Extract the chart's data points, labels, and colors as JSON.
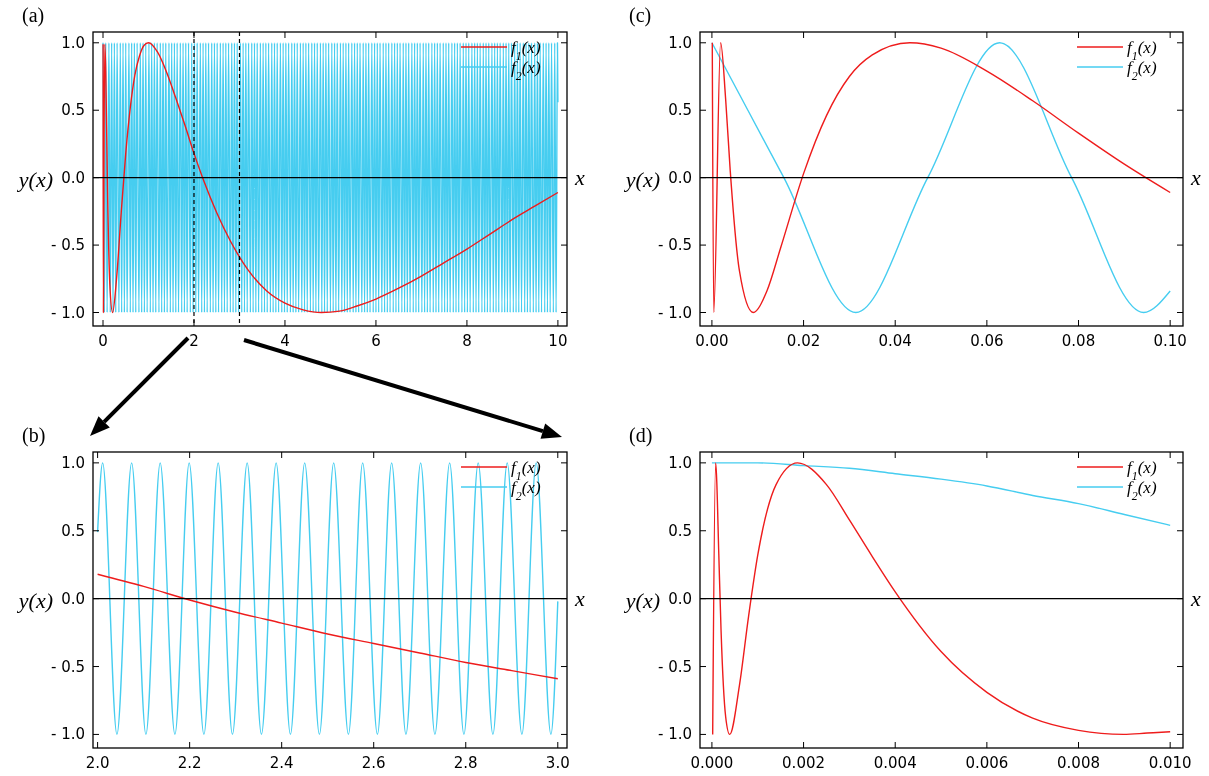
{
  "chart_data": [
    {
      "type": "line",
      "title": "(a)",
      "xlabel": "x",
      "ylabel": "y(x)",
      "legend": "top right",
      "xlim": [
        -0.22,
        10.2
      ],
      "ylim": [
        -1.1,
        1.08
      ],
      "xticks": [
        0,
        2,
        4,
        6,
        8,
        10
      ],
      "yticks": [
        {
          "value": -1,
          "label": "- 1.0"
        },
        {
          "value": -0.5,
          "label": "- 0.5"
        },
        {
          "value": 0,
          "label": "0.0"
        },
        {
          "value": 0.5,
          "label": "0.5"
        },
        {
          "value": 1,
          "label": "1.0"
        }
      ],
      "ref_lines": [
        {
          "axis": "y",
          "value": 0,
          "color": "#000000",
          "line_style": "solid"
        },
        {
          "axis": "x",
          "value": 2,
          "color": "#000000",
          "line_style": "dashed"
        },
        {
          "axis": "x",
          "value": 3,
          "color": "#000000",
          "line_style": "dashed"
        }
      ],
      "series": [
        {
          "name": "f$_{1}$(x)",
          "color": "#ee1c1c",
          "x": [
            0.002,
            0.004,
            0.009,
            0.02,
            0.04,
            0.06,
            0.1,
            0.15,
            0.21,
            0.3,
            0.4,
            0.5,
            0.6,
            0.7,
            0.8,
            0.9,
            1,
            1.2,
            1.4,
            1.6,
            1.8,
            2,
            2.2,
            2.5,
            2.8,
            3.2,
            3.6,
            4,
            4.4,
            4.8,
            5.2,
            5.6,
            6,
            6.5,
            7,
            7.5,
            8,
            8.5,
            9,
            9.5,
            10
          ],
          "values": [
            0.99,
            0.05,
            -1,
            0.03,
            0.99,
            0.79,
            -0.11,
            -0.79,
            -1,
            -0.74,
            -0.26,
            0.18,
            0.52,
            0.76,
            0.9,
            0.98,
            1,
            0.93,
            0.78,
            0.59,
            0.39,
            0.18,
            -0.01,
            -0.26,
            -0.47,
            -0.69,
            -0.84,
            -0.93,
            -0.98,
            -1,
            -0.99,
            -0.95,
            -0.9,
            -0.82,
            -0.73,
            -0.63,
            -0.53,
            -0.42,
            -0.31,
            -0.21,
            -0.11
          ]
        },
        {
          "name": "f$_{2}$(x)",
          "color": "#46cdf0",
          "x": [
            0,
            0.03,
            0.06,
            0.09,
            0.13,
            0.16,
            0.19,
            0.22,
            0.25,
            0.28,
            0.31,
            0.35,
            0.38,
            0.41,
            0.44,
            0.47,
            0.5,
            0.53,
            0.57,
            0.6,
            0.63,
            0.66,
            0.69,
            0.72,
            0.75,
            0.79,
            0.82,
            0.85,
            0.88,
            0.91,
            0.94,
            0.97,
            1.01,
            1.04,
            1.07,
            1.1,
            1.13,
            1.16,
            1.19,
            1.23,
            1.26,
            1.29,
            1.32,
            1.35,
            1.38,
            1.41,
            1.45,
            1.48,
            1.51,
            1.54,
            1.57,
            1.6,
            1.63,
            1.66,
            1.7,
            1.73,
            1.76,
            1.79,
            1.82,
            1.85,
            1.88,
            1.92,
            1.95,
            1.98,
            2.01,
            2.04,
            2.07,
            2.1,
            2.14,
            2.17,
            2.2,
            2.23,
            2.26,
            2.29,
            2.32,
            2.36,
            2.39,
            2.42,
            2.45,
            2.48,
            2.51,
            2.54,
            2.58,
            2.61,
            2.64,
            2.67,
            2.7,
            2.73,
            2.76,
            2.8,
            2.83,
            2.86,
            2.89,
            2.92,
            2.95,
            2.98,
            3.02,
            3.05,
            3.08,
            3.11,
            3.14,
            3.17,
            3.2,
            3.24,
            3.27,
            3.3,
            3.33,
            3.36,
            3.39,
            3.42,
            3.46,
            3.49,
            3.52,
            3.55,
            3.58,
            3.61,
            3.64,
            3.68,
            3.71,
            3.74,
            3.77,
            3.8,
            3.83,
            3.86,
            3.9,
            3.93,
            3.96,
            3.99,
            4.02,
            4.05,
            4.08,
            4.12,
            4.15,
            4.18,
            4.21,
            4.24,
            4.27,
            4.3,
            4.34,
            4.37,
            4.4,
            4.43,
            4.46,
            4.49,
            4.52,
            4.56,
            4.59,
            4.62,
            4.65,
            4.68,
            4.71,
            4.74,
            4.78,
            4.81,
            4.84,
            4.87,
            4.9,
            4.93,
            4.96,
            5,
            5.03,
            5.06,
            5.09,
            5.12,
            5.15,
            5.18,
            5.22,
            5.25,
            5.28,
            5.31,
            5.34,
            5.37,
            5.4,
            5.43,
            5.47,
            5.5,
            5.53,
            5.56,
            5.59,
            5.62,
            5.65,
            5.69,
            5.72,
            5.75,
            5.78,
            5.81,
            5.84,
            5.87,
            5.91,
            5.94,
            5.97,
            6,
            6.03,
            6.06,
            6.09,
            6.13,
            6.16,
            6.19,
            6.22,
            6.25,
            6.28,
            6.31,
            6.35,
            6.38,
            6.41,
            6.44,
            6.47,
            6.5,
            6.53,
            6.57,
            6.6,
            6.63,
            6.66,
            6.69,
            6.72,
            6.75,
            6.79,
            6.82,
            6.85,
            6.88,
            6.91,
            6.94,
            6.97,
            7.01,
            7.04,
            7.07,
            7.1,
            7.13,
            7.16,
            7.19,
            7.23,
            7.26,
            7.29,
            7.32,
            7.35,
            7.38,
            7.41,
            7.45,
            7.48,
            7.51,
            7.54,
            7.57,
            7.6,
            7.63,
            7.67,
            7.7,
            7.73,
            7.76,
            7.79,
            7.82,
            7.85,
            7.89,
            7.92,
            7.95,
            7.98,
            8.01,
            8.04,
            8.07,
            8.11,
            8.14,
            8.17,
            8.2,
            8.23,
            8.26,
            8.29,
            8.33,
            8.36,
            8.39,
            8.42,
            8.45,
            8.48,
            8.51,
            8.55,
            8.58,
            8.61,
            8.64,
            8.67,
            8.7,
            8.73,
            8.77,
            8.8,
            8.83,
            8.86,
            8.89,
            8.92,
            8.95,
            8.98,
            9.02,
            9.05,
            9.08,
            9.11,
            9.14,
            9.17,
            9.2,
            9.24,
            9.27,
            9.3,
            9.33,
            9.36,
            9.39,
            9.42,
            9.46,
            9.49,
            9.52,
            9.55,
            9.58,
            9.61,
            9.64,
            9.68,
            9.71,
            9.74,
            9.77,
            9.8,
            9.83,
            9.86,
            9.9,
            9.93,
            9.96,
            9.99,
            10
          ],
          "values": [
            1,
            -1,
            1,
            -1,
            1,
            -1,
            1,
            -1,
            1,
            -1,
            1,
            -1,
            1,
            -1,
            1,
            -1,
            1,
            -1,
            1,
            -1,
            1,
            -1,
            1,
            -1,
            1,
            -1,
            1,
            -1,
            1,
            -1,
            1,
            -1,
            1,
            -1,
            1,
            -1,
            1,
            -1,
            1,
            -1,
            1,
            -1,
            1,
            -1,
            1,
            -1,
            1,
            -1,
            1,
            -1,
            1,
            -1,
            1,
            -1,
            1,
            -1,
            1,
            -1,
            1,
            -1,
            1,
            -1,
            1,
            -1,
            1,
            -1,
            1,
            -1,
            1,
            -1,
            1,
            -1,
            1,
            -1,
            1,
            -1,
            1,
            -1,
            1,
            -1,
            1,
            -1,
            1,
            -1,
            1,
            -1,
            1,
            -1,
            1,
            -1,
            1,
            -1,
            1,
            -1,
            1,
            -1,
            1,
            -1,
            1,
            -1,
            1,
            -1,
            1,
            -1,
            1,
            -1,
            1,
            -1,
            1,
            -1,
            1,
            -1,
            1,
            -1,
            1,
            -1,
            1,
            -1,
            1,
            -1,
            1,
            -1,
            1,
            -1,
            1,
            -1,
            1,
            -1,
            1,
            -1,
            1,
            -1,
            1,
            -1,
            1,
            -1,
            1,
            -1,
            1,
            -1,
            1,
            -1,
            1,
            -1,
            1,
            -1,
            1,
            -1,
            1,
            -1,
            1,
            -1,
            1,
            -1,
            1,
            -1,
            1,
            -1,
            1,
            -1,
            1,
            -1,
            1,
            -1,
            1,
            -1,
            1,
            -1,
            1,
            -1,
            1,
            -1,
            1,
            -1,
            1,
            -1,
            1,
            -1,
            1,
            -1,
            1,
            -1,
            1,
            -1,
            1,
            -1,
            1,
            -1,
            1,
            -1,
            1,
            -1,
            1,
            -1,
            1,
            -1,
            1,
            -1,
            1,
            -1,
            1,
            -1,
            1,
            -1,
            1,
            -1,
            1,
            -1,
            1,
            -1,
            1,
            -1,
            1,
            -1,
            1,
            -1,
            1,
            -1,
            1,
            -1,
            1,
            -1,
            1,
            -1,
            1,
            -1,
            1,
            -1,
            1,
            -1,
            1,
            -1,
            1,
            -1,
            1,
            -1,
            1,
            -1,
            1,
            -1,
            1,
            -1,
            1,
            -1,
            1,
            -1,
            1,
            -1,
            1,
            -1,
            1,
            -1,
            1,
            -1,
            1,
            -1,
            1,
            -1,
            1,
            -1,
            1,
            -1,
            1,
            -1,
            1,
            -1,
            1,
            -1,
            1,
            -1,
            1,
            -1,
            1,
            -1,
            1,
            -1,
            1,
            -1,
            1,
            -1,
            1,
            -1,
            1,
            -1,
            1,
            -1,
            1,
            -1,
            1,
            -1,
            1,
            -1,
            1,
            -1,
            1,
            -1,
            1,
            -1,
            1,
            -1,
            1,
            -1,
            1,
            -1,
            1,
            -1,
            1,
            -1,
            1,
            -1,
            1,
            -1,
            1,
            -1,
            1,
            -1,
            1,
            -1,
            1,
            0.56
          ]
        }
      ]
    },
    {
      "type": "line",
      "title": "(c)",
      "xlabel": "x",
      "ylabel": "y(x)",
      "legend": "top right",
      "xlim": [
        -0.0026,
        0.1028
      ],
      "ylim": [
        -1.1,
        1.08
      ],
      "xticks": [
        {
          "value": 0,
          "label": "0.00"
        },
        {
          "value": 0.02,
          "label": "0.02"
        },
        {
          "value": 0.04,
          "label": "0.04"
        },
        {
          "value": 0.06,
          "label": "0.06"
        },
        {
          "value": 0.08,
          "label": "0.08"
        },
        {
          "value": 0.1,
          "label": "0.10"
        }
      ],
      "yticks": [
        {
          "value": -1,
          "label": "- 1.0"
        },
        {
          "value": -0.5,
          "label": "- 0.5"
        },
        {
          "value": 0,
          "label": "0.0"
        },
        {
          "value": 0.5,
          "label": "0.5"
        },
        {
          "value": 1,
          "label": "1.0"
        }
      ],
      "ref_lines": [
        {
          "axis": "y",
          "value": 0,
          "color": "#000000",
          "line_style": "solid"
        }
      ],
      "series": [
        {
          "name": "f$_{1}$(x)",
          "color": "#ee1c1c",
          "x": [
            8e-05,
            0.0004,
            0.0019,
            0.003,
            0.004,
            0.006,
            0.009,
            0.012,
            0.015,
            0.02,
            0.025,
            0.03,
            0.035,
            0.0432,
            0.05,
            0.06,
            0.07,
            0.08,
            0.09,
            0.1
          ],
          "values": [
            1,
            -1,
            1,
            0.58,
            0.05,
            -0.69,
            -1,
            -0.84,
            -0.52,
            0.03,
            0.46,
            0.75,
            0.91,
            1,
            0.96,
            0.79,
            0.57,
            0.33,
            0.1,
            -0.11
          ]
        },
        {
          "name": "f$_{2}$(x)",
          "color": "#46cdf0",
          "x": [
            0,
            0.0157,
            0.0314,
            0.0471,
            0.0628,
            0.0785,
            0.0942,
            0.1
          ],
          "values": [
            1,
            0,
            -1,
            0,
            1,
            0,
            -1,
            -0.84
          ]
        }
      ]
    },
    {
      "type": "line",
      "title": "(b)",
      "xlabel": "x",
      "ylabel": "y(x)",
      "legend": "top right",
      "xlim": [
        1.99,
        3.02
      ],
      "ylim": [
        -1.1,
        1.08
      ],
      "xticks": [
        {
          "value": 2,
          "label": "2.0"
        },
        {
          "value": 2.2,
          "label": "2.2"
        },
        {
          "value": 2.4,
          "label": "2.4"
        },
        {
          "value": 2.6,
          "label": "2.6"
        },
        {
          "value": 2.8,
          "label": "2.8"
        },
        {
          "value": 3,
          "label": "3.0"
        }
      ],
      "yticks": [
        {
          "value": -1,
          "label": "- 1.0"
        },
        {
          "value": -0.5,
          "label": "- 0.5"
        },
        {
          "value": 0,
          "label": "0.0"
        },
        {
          "value": 0.5,
          "label": "0.5"
        },
        {
          "value": 1,
          "label": "1.0"
        }
      ],
      "ref_lines": [
        {
          "axis": "y",
          "value": 0,
          "color": "#000000",
          "line_style": "solid"
        }
      ],
      "series": [
        {
          "name": "f$_{1}$(x)",
          "color": "#ee1c1c",
          "x": [
            2,
            2.1,
            2.2,
            2.3,
            2.4,
            2.5,
            2.6,
            2.7,
            2.8,
            2.9,
            3
          ],
          "values": [
            0.18,
            0.09,
            -0.01,
            -0.1,
            -0.18,
            -0.26,
            -0.33,
            -0.4,
            -0.47,
            -0.53,
            -0.59
          ]
        },
        {
          "name": "f$_{2}$(x)",
          "color": "#46cdf0",
          "x": [
            2,
            2.011,
            2.042,
            2.074,
            2.105,
            2.136,
            2.168,
            2.199,
            2.231,
            2.262,
            2.293,
            2.325,
            2.356,
            2.388,
            2.419,
            2.45,
            2.482,
            2.513,
            2.545,
            2.576,
            2.608,
            2.639,
            2.67,
            2.702,
            2.733,
            2.765,
            2.796,
            2.827,
            2.859,
            2.89,
            2.922,
            2.953,
            2.985,
            3
          ],
          "values": [
            0.49,
            1,
            -1,
            1,
            -1,
            1,
            -1,
            1,
            -1,
            1,
            -1,
            1,
            -1,
            1,
            -1,
            1,
            -1,
            1,
            -1,
            1,
            -1,
            1,
            -1,
            1,
            -1,
            1,
            -1,
            1,
            -1,
            1,
            -1,
            1,
            -1,
            -0.02
          ]
        }
      ]
    },
    {
      "type": "line",
      "title": "(d)",
      "xlabel": "x",
      "ylabel": "y(x)",
      "legend": "top right",
      "xlim": [
        -0.00026,
        0.01028
      ],
      "ylim": [
        -1.1,
        1.08
      ],
      "xticks": [
        {
          "value": 0,
          "label": "0.000"
        },
        {
          "value": 0.002,
          "label": "0.002"
        },
        {
          "value": 0.004,
          "label": "0.004"
        },
        {
          "value": 0.006,
          "label": "0.006"
        },
        {
          "value": 0.008,
          "label": "0.008"
        },
        {
          "value": 0.01,
          "label": "0.010"
        }
      ],
      "yticks": [
        {
          "value": -1,
          "label": "- 1.0"
        },
        {
          "value": -0.5,
          "label": "- 0.5"
        },
        {
          "value": 0,
          "label": "0.0"
        },
        {
          "value": 0.5,
          "label": "0.5"
        },
        {
          "value": 1,
          "label": "1.0"
        }
      ],
      "ref_lines": [
        {
          "axis": "y",
          "value": 0,
          "color": "#000000",
          "line_style": "solid"
        }
      ],
      "series": [
        {
          "name": "f$_{1}$(x)",
          "color": "#ee1c1c",
          "x": [
            1.68e-05,
            8.07e-05,
            0.0001,
            0.00015,
            0.0002,
            0.0003,
            0.000388,
            0.0006,
            0.0008,
            0.001,
            0.0014,
            0.001867,
            0.0025,
            0.003,
            0.0035,
            0.004,
            0.005,
            0.006,
            0.007,
            0.008,
            0.00898,
            0.0095,
            0.01
          ],
          "values": [
            -1,
            1,
            0.91,
            0.33,
            -0.24,
            -0.87,
            -1,
            -0.64,
            -0.13,
            0.32,
            0.84,
            1,
            0.84,
            0.58,
            0.31,
            0.05,
            -0.39,
            -0.69,
            -0.88,
            -0.97,
            -1,
            -0.99,
            -0.98
          ]
        },
        {
          "name": "f$_{2}$(x)",
          "color": "#46cdf0",
          "x": [
            0,
            0.001,
            0.002,
            0.003,
            0.004,
            0.005,
            0.006,
            0.007,
            0.008,
            0.009,
            0.01
          ],
          "values": [
            1,
            1,
            0.98,
            0.96,
            0.92,
            0.88,
            0.83,
            0.76,
            0.7,
            0.62,
            0.54
          ]
        }
      ]
    }
  ]
}
